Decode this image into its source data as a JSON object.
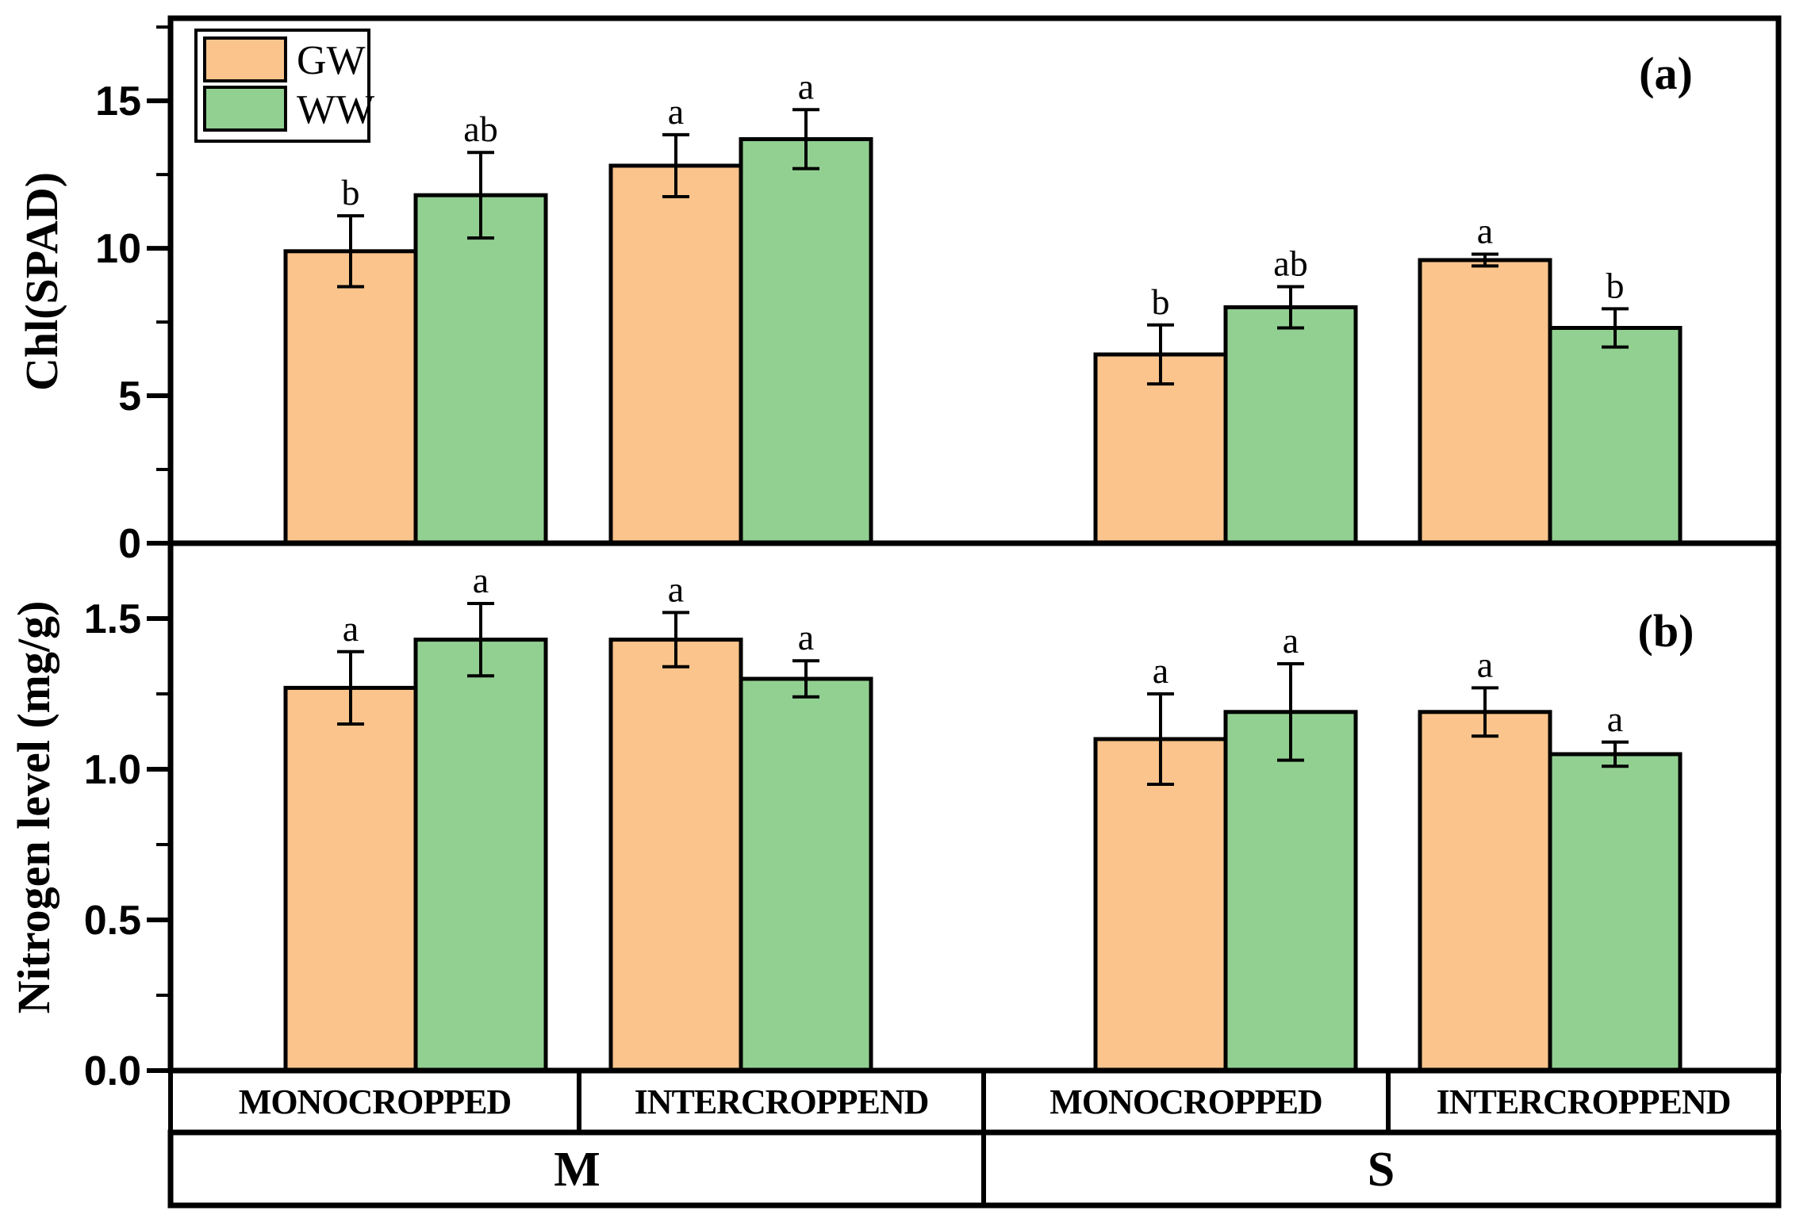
{
  "figure": {
    "panel_a_label": "(a)",
    "panel_b_label": "(b)"
  },
  "colors": {
    "gw_fill": "#FAC48C",
    "ww_fill": "#92D092",
    "outline": "#000000",
    "background": "#FFFFFF"
  },
  "legend": {
    "items": [
      {
        "label": "GW",
        "color": "#FAC48C"
      },
      {
        "label": "WW",
        "color": "#92D092"
      }
    ]
  },
  "chart_data": [
    {
      "type": "bar",
      "panel": "a",
      "title": "",
      "ylabel": "Chl(SPAD)",
      "ylim": [
        0,
        17.8
      ],
      "yticks": [
        {
          "value": 0,
          "label": "0"
        },
        {
          "value": 5,
          "label": "5"
        },
        {
          "value": 10,
          "label": "10"
        },
        {
          "value": 15,
          "label": "15"
        }
      ],
      "yminor": [
        2.5,
        7.5,
        12.5,
        17.5
      ],
      "categories": [
        "M-MONOCROPPED",
        "M-INTERCROPPEND",
        "S-MONOCROPPED",
        "S-INTERCROPPEND"
      ],
      "series": [
        {
          "name": "GW",
          "values": [
            9.9,
            12.8,
            6.4,
            9.6
          ],
          "errors": [
            1.2,
            1.05,
            1.0,
            0.2
          ],
          "sig_letters": [
            "b",
            "a",
            "b",
            "a"
          ]
        },
        {
          "name": "WW",
          "values": [
            11.8,
            13.7,
            8.0,
            7.3
          ],
          "errors": [
            1.45,
            1.0,
            0.7,
            0.65
          ],
          "sig_letters": [
            "ab",
            "a",
            "ab",
            "b"
          ]
        }
      ],
      "legend_position": "top-left",
      "grid": false
    },
    {
      "type": "bar",
      "panel": "b",
      "title": "",
      "ylabel": "Nitrogen level (mg/g)",
      "ylim": [
        0,
        1.75
      ],
      "yticks": [
        {
          "value": 0,
          "label": "0.0"
        },
        {
          "value": 0.5,
          "label": "0.5"
        },
        {
          "value": 1.0,
          "label": "1.0"
        },
        {
          "value": 1.5,
          "label": "1.5"
        }
      ],
      "yminor": [
        0.25,
        0.75,
        1.25
      ],
      "categories": [
        "M-MONOCROPPED",
        "M-INTERCROPPEND",
        "S-MONOCROPPED",
        "S-INTERCROPPEND"
      ],
      "series": [
        {
          "name": "GW",
          "values": [
            1.27,
            1.43,
            1.1,
            1.19
          ],
          "errors": [
            0.12,
            0.09,
            0.15,
            0.08
          ],
          "sig_letters": [
            "a",
            "a",
            "a",
            "a"
          ]
        },
        {
          "name": "WW",
          "values": [
            1.43,
            1.3,
            1.19,
            1.05
          ],
          "errors": [
            0.12,
            0.06,
            0.16,
            0.04
          ],
          "sig_letters": [
            "a",
            "a",
            "a",
            "a"
          ]
        }
      ],
      "grid": false
    }
  ],
  "x_axis": {
    "group_labels": [
      "MONOCROPPED",
      "INTERCROPPEND",
      "MONOCROPPED",
      "INTERCROPPEND"
    ],
    "section_labels": [
      "M",
      "S"
    ]
  }
}
